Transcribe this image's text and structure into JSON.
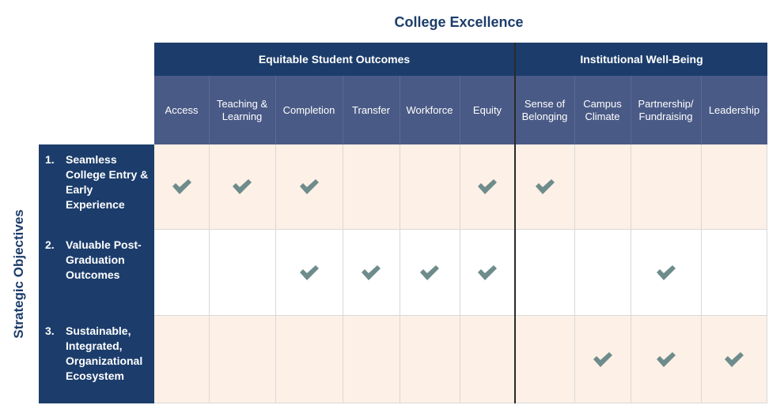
{
  "title": "College Excellence",
  "row_axis_title": "Strategic Objectives",
  "groups": [
    {
      "label": "Equitable Student Outcomes"
    },
    {
      "label": "Institutional Well-Being"
    }
  ],
  "columns": [
    {
      "line1": "Access",
      "line2": ""
    },
    {
      "line1": "Teaching &",
      "line2": "Learning"
    },
    {
      "line1": "Completion",
      "line2": ""
    },
    {
      "line1": "Transfer",
      "line2": ""
    },
    {
      "line1": "Workforce",
      "line2": ""
    },
    {
      "line1": "Equity",
      "line2": ""
    },
    {
      "line1": "Sense of",
      "line2": "Belonging"
    },
    {
      "line1": "Campus",
      "line2": "Climate"
    },
    {
      "line1": "Partnership/",
      "line2": "Fundraising"
    },
    {
      "line1": "Leadership",
      "line2": ""
    }
  ],
  "rows": [
    {
      "number": "1.",
      "label": "Seamless College Entry & Early Experience",
      "checks": [
        true,
        true,
        true,
        false,
        false,
        true,
        true,
        false,
        false,
        false
      ]
    },
    {
      "number": "2.",
      "label": "Valuable Post-Graduation Outcomes",
      "checks": [
        false,
        false,
        true,
        true,
        true,
        true,
        false,
        false,
        true,
        false
      ]
    },
    {
      "number": "3.",
      "label": "Sustainable, Integrated, Organizational Ecosystem",
      "checks": [
        false,
        false,
        false,
        false,
        false,
        false,
        false,
        true,
        true,
        true
      ]
    }
  ],
  "colors": {
    "navy": "#1c3d6b",
    "header_slate": "#4a5a86",
    "peach_row": "#fdf0e6",
    "white_row": "#ffffff",
    "check": "#6e8c8c"
  },
  "icons": {
    "check": "checkmark-icon"
  }
}
